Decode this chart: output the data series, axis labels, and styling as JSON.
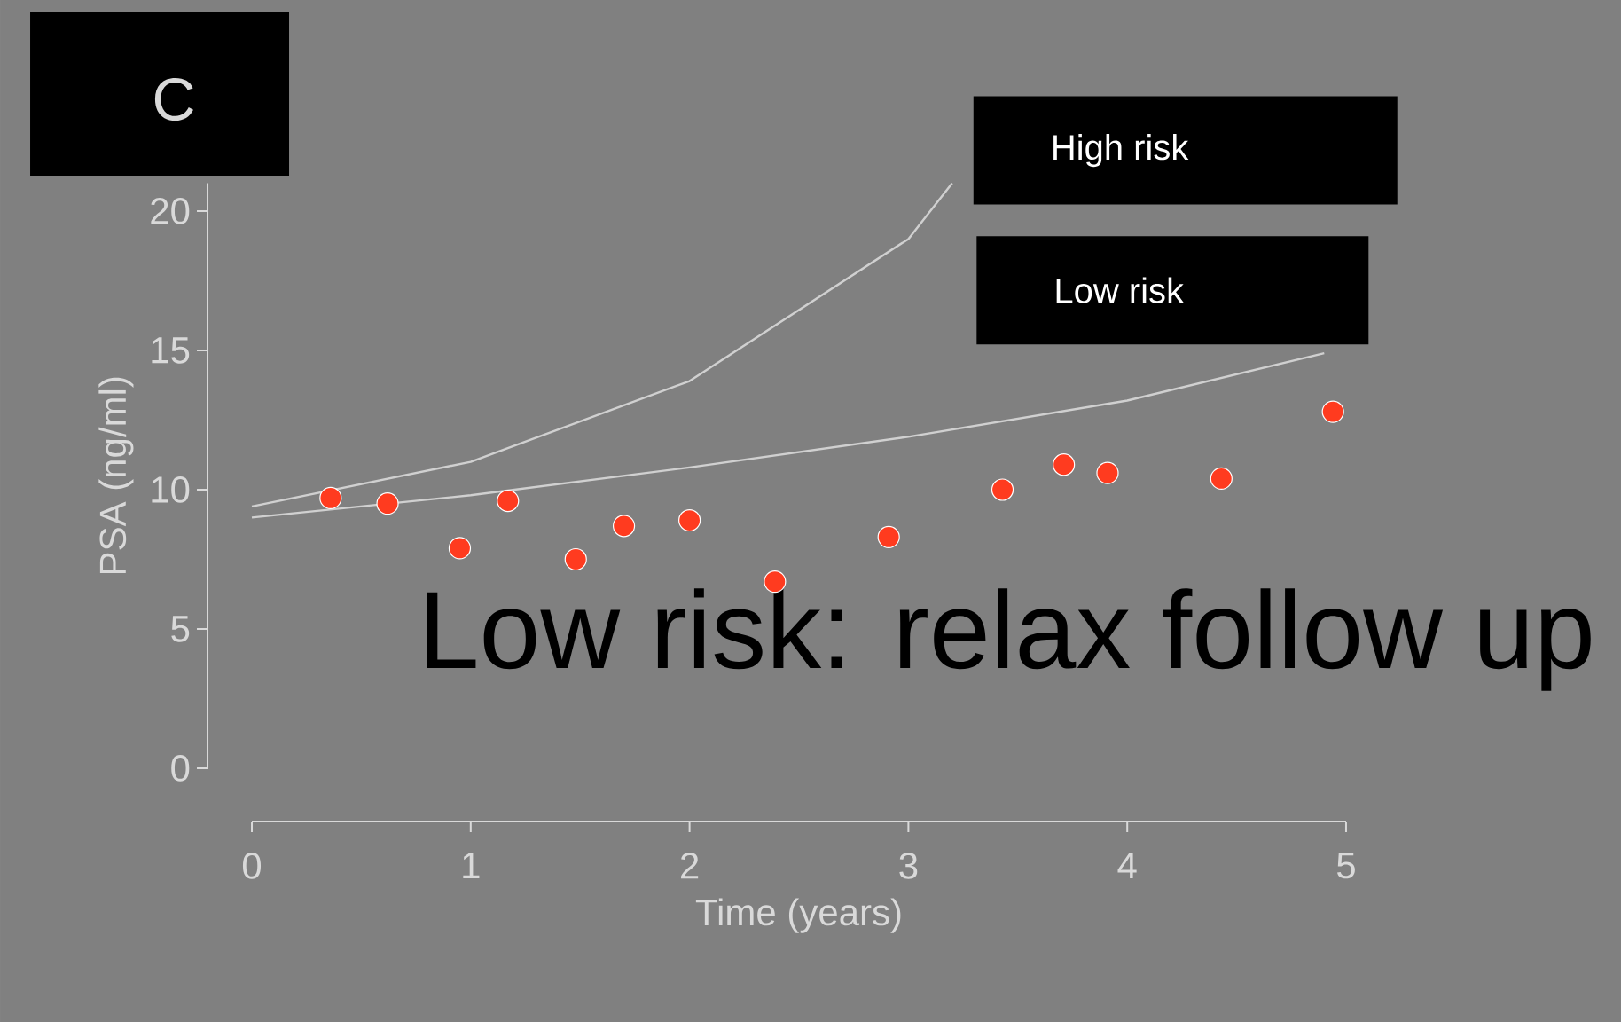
{
  "chart_data": {
    "type": "scatter",
    "title": "C",
    "xlabel": "Time (years)",
    "ylabel": "PSA (ng/ml)",
    "xlim": [
      0,
      5
    ],
    "ylim": [
      0,
      21
    ],
    "xticks": [
      0,
      1,
      2,
      3,
      4,
      5
    ],
    "yticks": [
      0,
      5,
      10,
      15,
      20
    ],
    "grid": false,
    "legend": false,
    "series": [
      {
        "name": "High risk",
        "type": "line",
        "marker": "none",
        "color": "#d0d0d0",
        "x": [
          0,
          1,
          2,
          3,
          3.2
        ],
        "values": [
          9.4,
          11.0,
          13.9,
          19.0,
          21.0
        ]
      },
      {
        "name": "Low risk",
        "type": "line",
        "marker": "none",
        "color": "#d0d0d0",
        "x": [
          0,
          1,
          2,
          3,
          4,
          4.9
        ],
        "values": [
          9.0,
          9.8,
          10.8,
          11.9,
          13.2,
          14.9
        ]
      },
      {
        "marker": "circle",
        "color": "#ff3b1f",
        "x": [
          0.36,
          0.62,
          0.95,
          1.17,
          1.48,
          1.7,
          2.0,
          2.39,
          2.91,
          3.43,
          3.71,
          3.91,
          4.43,
          4.94
        ],
        "values": [
          9.7,
          9.5,
          7.9,
          9.6,
          7.5,
          8.7,
          8.9,
          6.7,
          8.3,
          10.0,
          10.9,
          10.6,
          10.4,
          12.8
        ]
      }
    ],
    "annotations": [
      "Low risk: relax follow up"
    ]
  }
}
